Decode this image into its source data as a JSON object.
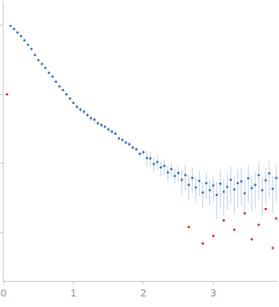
{
  "chart_data": {
    "type": "scatter",
    "log": "y",
    "grid": false,
    "tick_labels": "x",
    "xlim": [
      0,
      3.92
    ],
    "xticks": [
      0,
      1,
      2,
      3
    ],
    "ylim": [
      0.0002,
      2.2
    ],
    "yticks": [
      0.001,
      0.01,
      0.1,
      1
    ],
    "series": [
      {
        "color": "#3a6fc4",
        "marker": "circle",
        "x": [
          0.1,
          0.15,
          0.2,
          0.25,
          0.3,
          0.35,
          0.4,
          0.45,
          0.5,
          0.55,
          0.6,
          0.65,
          0.7,
          0.75,
          0.8,
          0.85,
          0.9,
          0.95,
          1.0,
          1.05,
          1.1,
          1.15,
          1.2,
          1.25,
          1.3,
          1.35,
          1.4,
          1.45,
          1.5,
          1.55,
          1.6,
          1.65,
          1.7,
          1.75,
          1.8,
          1.85,
          1.9,
          1.95,
          2.0,
          2.05,
          2.1,
          2.15,
          2.2,
          2.25,
          2.3,
          2.35,
          2.4,
          2.45,
          2.5,
          2.55,
          2.6,
          2.65,
          2.7,
          2.75,
          2.8,
          2.85,
          2.9,
          2.95,
          3.0,
          3.05,
          3.1,
          3.15,
          3.2,
          3.25,
          3.3,
          3.35,
          3.4,
          3.45,
          3.5,
          3.55,
          3.6,
          3.65,
          3.7,
          3.75,
          3.8,
          3.85,
          3.9
        ],
        "values": [
          0.97,
          0.88,
          0.78,
          0.69,
          0.6,
          0.52,
          0.45,
          0.37,
          0.31,
          0.275,
          0.24,
          0.205,
          0.18,
          0.152,
          0.13,
          0.115,
          0.1,
          0.087,
          0.075,
          0.066,
          0.06,
          0.056,
          0.05,
          0.045,
          0.043,
          0.038,
          0.036,
          0.034,
          0.031,
          0.029,
          0.027,
          0.023,
          0.022,
          0.02,
          0.019,
          0.017,
          0.016,
          0.0138,
          0.0145,
          0.012,
          0.0118,
          0.0098,
          0.0105,
          0.0088,
          0.0092,
          0.0074,
          0.0083,
          0.0066,
          0.0073,
          0.0058,
          0.0068,
          0.0049,
          0.0062,
          0.0045,
          0.0056,
          0.0038,
          0.0052,
          0.0041,
          0.0048,
          0.0035,
          0.0051,
          0.0039,
          0.0046,
          0.0058,
          0.0042,
          0.0052,
          0.0055,
          0.0037,
          0.0061,
          0.0044,
          0.0049,
          0.0068,
          0.0041,
          0.0057,
          0.0072,
          0.0043,
          0.0062
        ],
        "errors": [
          0.019,
          0.018,
          0.016,
          0.014,
          0.012,
          0.01,
          0.009,
          0.0074,
          0.0062,
          0.0055,
          0.0048,
          0.0041,
          0.0036,
          0.003,
          0.0026,
          0.0023,
          0.002,
          0.0017,
          0.0015,
          0.0053,
          0.0048,
          0.0045,
          0.004,
          0.0036,
          0.0034,
          0.003,
          0.0029,
          0.0027,
          0.0025,
          0.0023,
          0.0022,
          0.0018,
          0.0018,
          0.0016,
          0.0015,
          0.0014,
          0.0013,
          0.0011,
          0.0012,
          0.003,
          0.003,
          0.0025,
          0.0026,
          0.0022,
          0.0023,
          0.0019,
          0.0021,
          0.0017,
          0.0018,
          0.0023,
          0.0027,
          0.002,
          0.0025,
          0.0018,
          0.0022,
          0.0015,
          0.0021,
          0.0016,
          0.0019,
          0.0019,
          0.0028,
          0.0021,
          0.0025,
          0.0032,
          0.0023,
          0.0029,
          0.003,
          0.002,
          0.0034,
          0.0024,
          0.0027,
          0.0037,
          0.0023,
          0.0031,
          0.004,
          0.0024,
          0.0034
        ]
      },
      {
        "color": "#e0202a",
        "marker": "circle",
        "x": [
          0.05,
          2.65,
          2.85,
          3.0,
          3.15,
          3.3,
          3.45,
          3.55,
          3.65,
          3.75,
          3.85,
          3.9
        ],
        "values": [
          0.1,
          0.0012,
          0.0007,
          0.0009,
          0.0015,
          0.0011,
          0.0019,
          0.0008,
          0.0013,
          0.0022,
          0.0006,
          0.0016
        ]
      }
    ]
  }
}
